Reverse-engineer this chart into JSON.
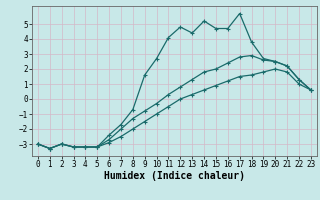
{
  "xlabel": "Humidex (Indice chaleur)",
  "ylabel": "",
  "xlim": [
    -0.5,
    23.5
  ],
  "ylim": [
    -3.8,
    6.2
  ],
  "background_color": "#c8e8e8",
  "grid_color": "#e8f4f4",
  "line_color": "#1a6b6b",
  "line1_x": [
    0,
    1,
    2,
    3,
    4,
    5,
    6,
    7,
    8,
    9,
    10,
    11,
    12,
    13,
    14,
    15,
    16,
    17,
    18,
    19,
    20,
    21,
    22,
    23
  ],
  "line1_y": [
    -3.0,
    -3.3,
    -3.0,
    -3.2,
    -3.2,
    -3.2,
    -2.4,
    -1.7,
    -0.7,
    1.6,
    2.7,
    4.1,
    4.8,
    4.4,
    5.2,
    4.7,
    4.7,
    5.7,
    3.8,
    2.7,
    2.5,
    2.2,
    1.3,
    0.6
  ],
  "line2_x": [
    0,
    1,
    2,
    3,
    4,
    5,
    6,
    7,
    8,
    9,
    10,
    11,
    12,
    13,
    14,
    15,
    16,
    17,
    18,
    19,
    20,
    21,
    22,
    23
  ],
  "line2_y": [
    -3.0,
    -3.3,
    -3.0,
    -3.2,
    -3.2,
    -3.2,
    -2.7,
    -2.0,
    -1.3,
    -0.8,
    -0.3,
    0.3,
    0.8,
    1.3,
    1.8,
    2.0,
    2.4,
    2.8,
    2.9,
    2.6,
    2.5,
    2.2,
    1.3,
    0.6
  ],
  "line3_x": [
    0,
    1,
    2,
    3,
    4,
    5,
    6,
    7,
    8,
    9,
    10,
    11,
    12,
    13,
    14,
    15,
    16,
    17,
    18,
    19,
    20,
    21,
    22,
    23
  ],
  "line3_y": [
    -3.0,
    -3.3,
    -3.0,
    -3.2,
    -3.2,
    -3.2,
    -2.9,
    -2.5,
    -2.0,
    -1.5,
    -1.0,
    -0.5,
    0.0,
    0.3,
    0.6,
    0.9,
    1.2,
    1.5,
    1.6,
    1.8,
    2.0,
    1.8,
    1.0,
    0.6
  ],
  "xticks": [
    0,
    1,
    2,
    3,
    4,
    5,
    6,
    7,
    8,
    9,
    10,
    11,
    12,
    13,
    14,
    15,
    16,
    17,
    18,
    19,
    20,
    21,
    22,
    23
  ],
  "yticks": [
    -3,
    -2,
    -1,
    0,
    1,
    2,
    3,
    4,
    5
  ],
  "markersize": 3,
  "linewidth": 0.9,
  "label_fontsize": 7,
  "tick_fontsize": 5.5
}
